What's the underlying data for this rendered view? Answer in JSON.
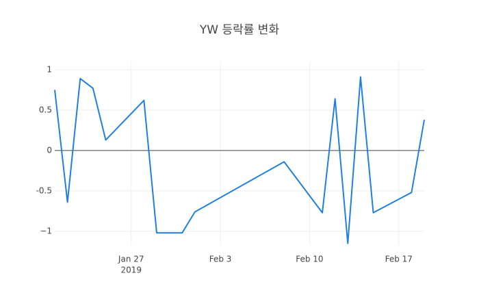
{
  "chart_data": {
    "type": "line",
    "title": "YW 등락률 변화",
    "x": [
      "2019-01-21",
      "2019-01-22",
      "2019-01-23",
      "2019-01-24",
      "2019-01-25",
      "2019-01-28",
      "2019-01-29",
      "2019-01-31",
      "2019-02-01",
      "2019-02-08",
      "2019-02-11",
      "2019-02-12",
      "2019-02-13",
      "2019-02-14",
      "2019-02-15",
      "2019-02-18",
      "2019-02-19"
    ],
    "values": [
      0.75,
      -0.64,
      0.89,
      0.77,
      0.13,
      0.62,
      -1.02,
      -1.02,
      -0.76,
      -0.14,
      -0.77,
      0.64,
      -1.15,
      0.91,
      -0.77,
      -0.52,
      0.38
    ],
    "color": "#1f7fe0",
    "xlim": [
      "2019-01-21",
      "2019-02-19"
    ],
    "xticks": [
      {
        "value": "2019-01-27",
        "label": "Jan 27"
      },
      {
        "value": "2019-02-03",
        "label": "Feb 3"
      },
      {
        "value": "2019-02-10",
        "label": "Feb 10"
      },
      {
        "value": "2019-02-17",
        "label": "Feb 17"
      }
    ],
    "x_year_label": "2019",
    "ylim": [
      -1.17,
      1.1
    ],
    "yticks": [
      {
        "value": -1,
        "label": "−1"
      },
      -0.5,
      0,
      0.5,
      1
    ],
    "grid": true,
    "zeroline": true
  }
}
